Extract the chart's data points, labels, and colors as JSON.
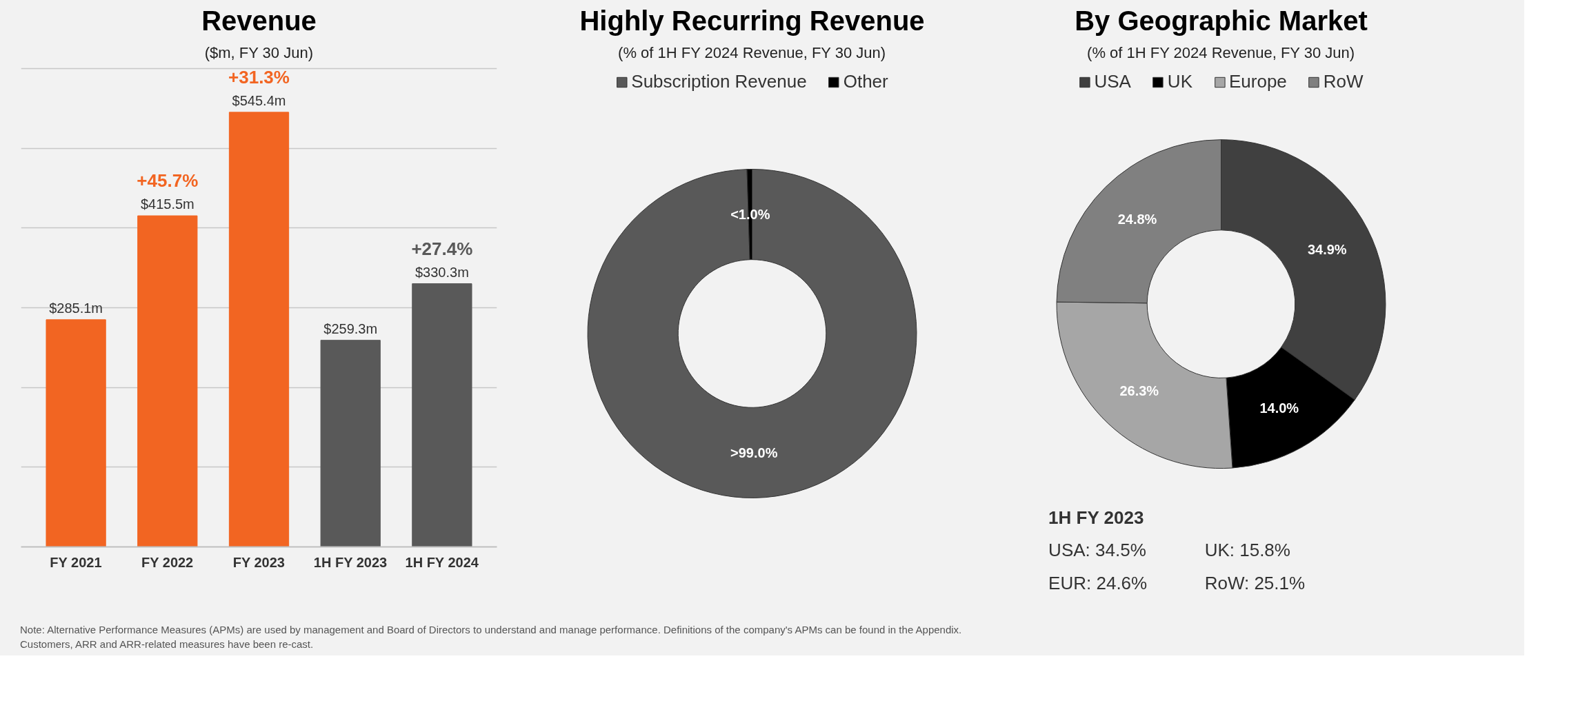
{
  "chart_data": [
    {
      "type": "bar",
      "title": "Revenue",
      "subtitle": "($m, FY 30 Jun)",
      "categories": [
        "FY 2021",
        "FY 2022",
        "FY 2023",
        "1H FY 2023",
        "1H FY 2024"
      ],
      "values": [
        285.1,
        415.5,
        545.4,
        259.3,
        330.3
      ],
      "colors": [
        "#f26522",
        "#f26522",
        "#f26522",
        "#595959",
        "#595959"
      ],
      "value_labels": [
        "$285.1m",
        "$415.5m",
        "$545.4m",
        "$259.3m",
        "$330.3m"
      ],
      "annotations": [
        {
          "text": "+45.7%",
          "x": "FY 2022",
          "y": 415.5
        },
        {
          "text": "+31.3%",
          "x": "FY 2023",
          "y": 545.4
        },
        {
          "text": "+27.4%",
          "x": "1H FY 2024",
          "y": 330.3
        },
        "Note: Alternative Performance Measures (APMs) are used by management and Board of Directors to understand and manage performance. Definitions of the company's APMs can be found in the Appendix.",
        "Customers, ARR and ARR-related measures have been re-cast."
      ],
      "yticks": [
        {
          "value": 0,
          "label": null
        },
        {
          "value": 100,
          "label": null
        },
        {
          "value": 200,
          "label": null
        },
        {
          "value": 300,
          "label": null
        },
        {
          "value": 400,
          "label": null
        },
        {
          "value": 500,
          "label": null
        },
        {
          "value": 600,
          "label": null
        }
      ],
      "grid": "y",
      "tick_labels": "x"
    },
    {
      "type": "donut",
      "title": "Highly Recurring Revenue",
      "subtitle": "(% of 1H FY 2024 Revenue, FY 30 Jun)",
      "categories": [
        "Subscription Revenue",
        "Other"
      ],
      "values": [
        99.5,
        0.5
      ],
      "colors": [
        "#595959",
        "#000000"
      ],
      "value_labels": [
        ">99.0%",
        "<1.0%"
      ],
      "legend": "top"
    },
    {
      "type": "donut",
      "title": "By Geographic Market",
      "subtitle": "(% of 1H FY 2024 Revenue, FY 30 Jun)",
      "categories": [
        "USA",
        "UK",
        "Europe",
        "RoW"
      ],
      "values": [
        34.9,
        14.0,
        26.3,
        24.8
      ],
      "colors": [
        "#404040",
        "#000000",
        "#a6a6a6",
        "#808080"
      ],
      "value_labels": [
        "34.9%",
        "14.0%",
        "26.3%",
        "24.8%"
      ],
      "legend": "top",
      "annotations": [
        "1H FY 2023",
        "USA:  34.5%",
        "UK:      15.8%",
        "EUR:  24.6%",
        "RoW:  25.1%"
      ]
    }
  ]
}
